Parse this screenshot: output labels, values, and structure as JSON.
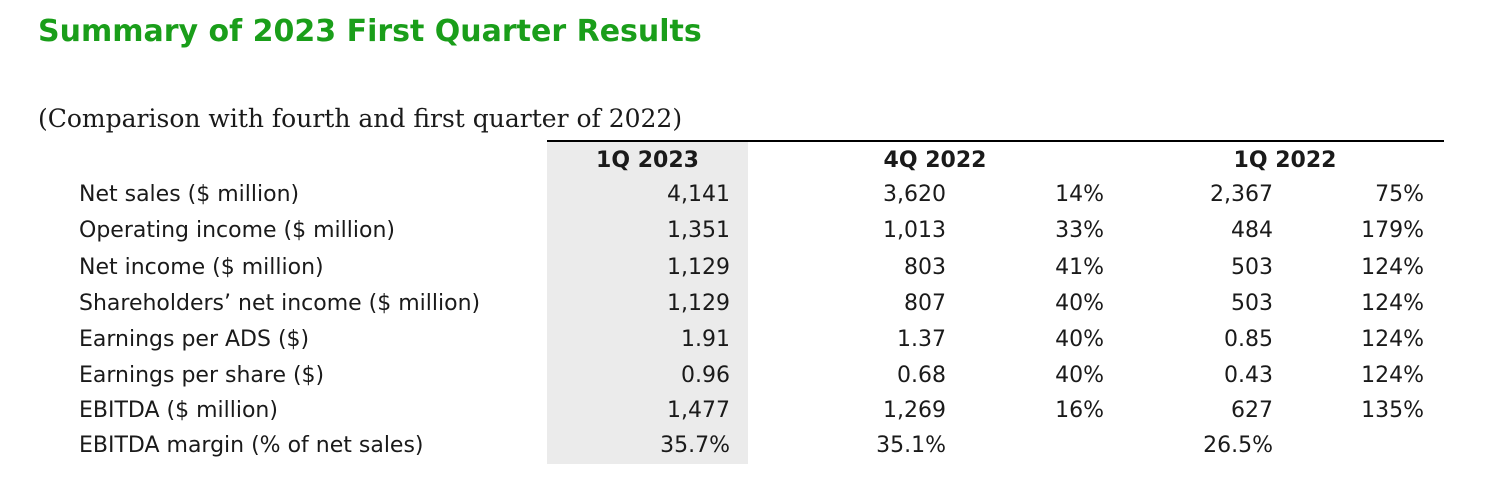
{
  "document": {
    "title": "Summary of 2023 First Quarter Results",
    "subtitle": "(Comparison with fourth and first quarter of 2022)",
    "colors": {
      "title": "#1a9e1a",
      "shade": "#ebebeb"
    },
    "headers": {
      "col_1q2023": "1Q 2023",
      "col_4q2022": "4Q 2022",
      "col_1q2022": "1Q 2022"
    },
    "rows": [
      {
        "label": "Net sales ($ million)",
        "q1_2023": "4,141",
        "q4_2022": "3,620",
        "q4_2022_change": "14%",
        "q1_2022": "2,367",
        "q1_2022_change": "75%"
      },
      {
        "label": "Operating income ($ million)",
        "q1_2023": "1,351",
        "q4_2022": "1,013",
        "q4_2022_change": "33%",
        "q1_2022": "484",
        "q1_2022_change": "179%"
      },
      {
        "label": "Net income ($ million)",
        "q1_2023": "1,129",
        "q4_2022": "803",
        "q4_2022_change": "41%",
        "q1_2022": "503",
        "q1_2022_change": "124%"
      },
      {
        "label": "Shareholders’ net income ($ million)",
        "q1_2023": "1,129",
        "q4_2022": "807",
        "q4_2022_change": "40%",
        "q1_2022": "503",
        "q1_2022_change": "124%"
      },
      {
        "label": "Earnings per ADS ($)",
        "q1_2023": "1.91",
        "q4_2022": "1.37",
        "q4_2022_change": "40%",
        "q1_2022": "0.85",
        "q1_2022_change": "124%"
      },
      {
        "label": "Earnings per share ($)",
        "q1_2023": "0.96",
        "q4_2022": "0.68",
        "q4_2022_change": "40%",
        "q1_2022": "0.43",
        "q1_2022_change": "124%"
      },
      {
        "label": "EBITDA ($ million)",
        "q1_2023": "1,477",
        "q4_2022": "1,269",
        "q4_2022_change": "16%",
        "q1_2022": "627",
        "q1_2022_change": "135%"
      },
      {
        "label": "EBITDA margin (% of net sales)",
        "q1_2023": "35.7%",
        "q4_2022": "35.1%",
        "q4_2022_change": "",
        "q1_2022": "26.5%",
        "q1_2022_change": ""
      }
    ]
  }
}
